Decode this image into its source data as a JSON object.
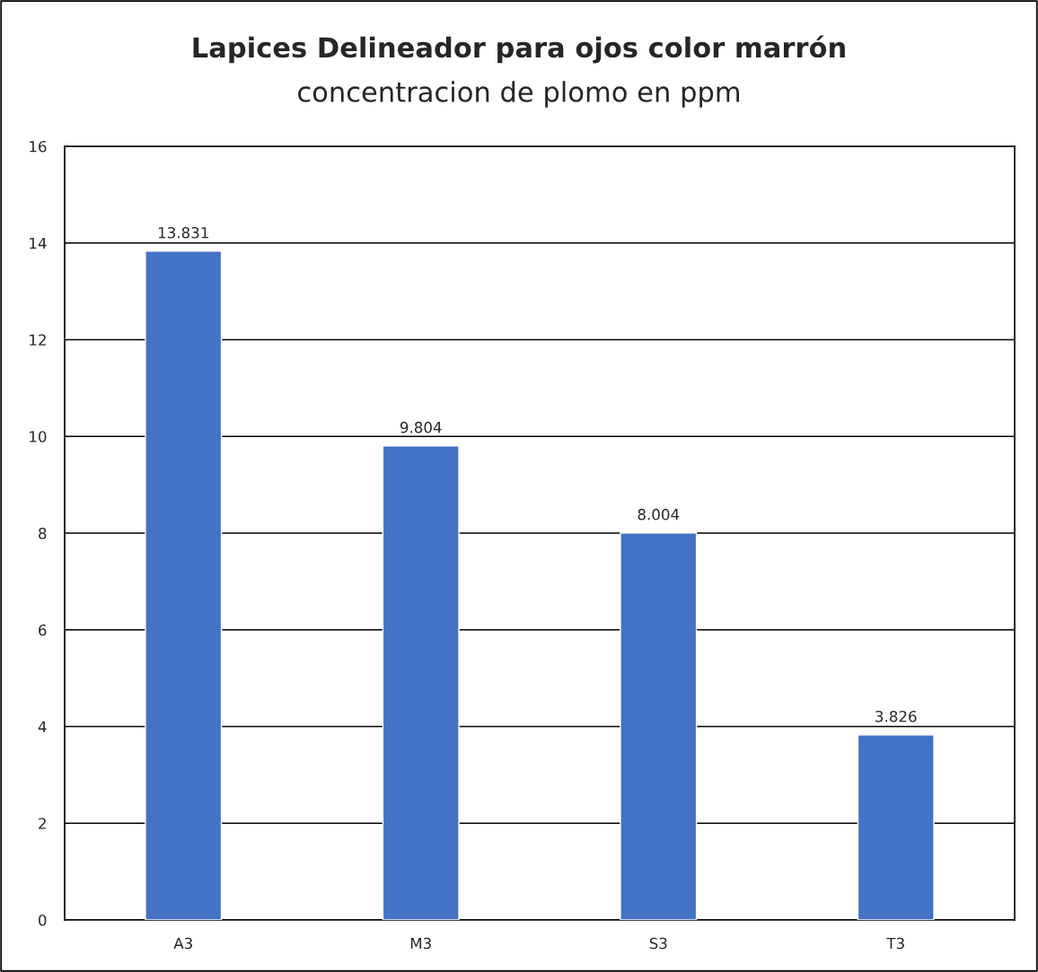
{
  "chart_data": {
    "type": "bar",
    "title": "Lapices Delineador para ojos color marrón",
    "subtitle": "concentracion de plomo en ppm",
    "categories": [
      "A3",
      "M3",
      "S3",
      "T3"
    ],
    "values": [
      13.831,
      9.804,
      8.004,
      3.826
    ],
    "color": "#4472c4",
    "ylim": [
      0,
      16
    ],
    "yticks": [
      0,
      2,
      4,
      6,
      8,
      10,
      12,
      14,
      16
    ],
    "grid": "y",
    "data_labels": true
  }
}
